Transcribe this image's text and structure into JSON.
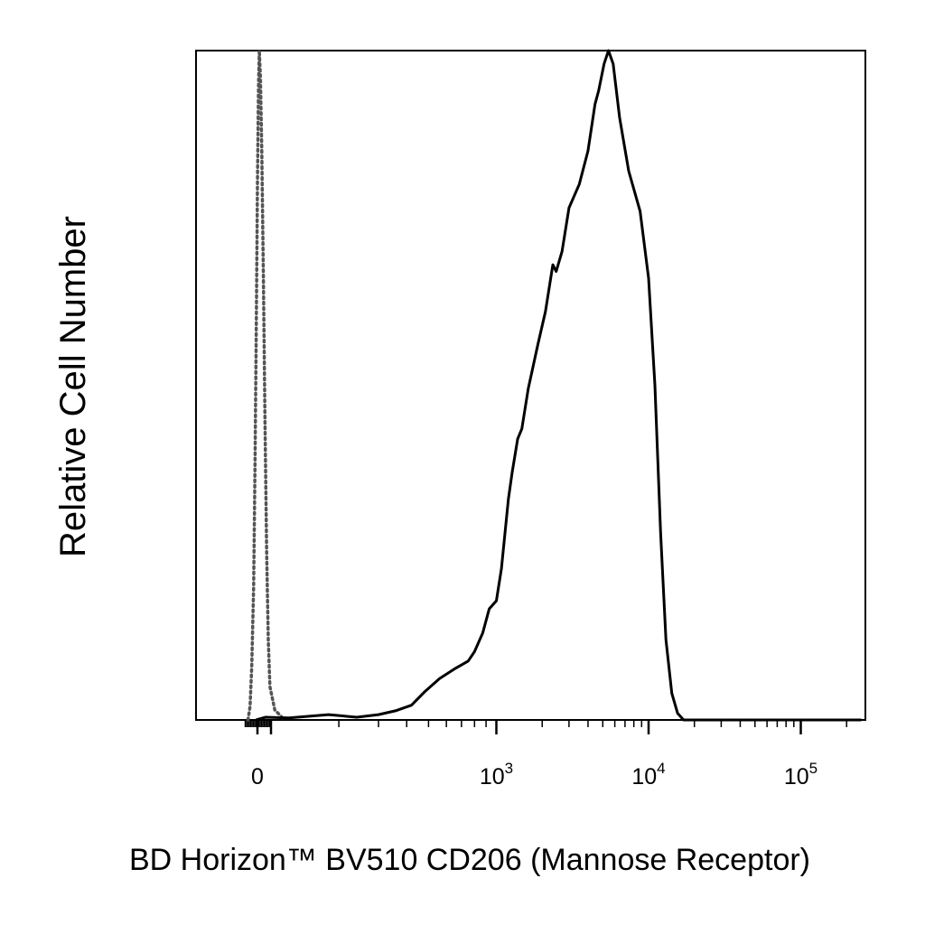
{
  "chart_data": {
    "type": "line",
    "title": "",
    "xlabel": "BD Horizon™ BV510 CD206 (Mannose Receptor)",
    "ylabel": "Relative Cell Number",
    "x_scale": "biexponential",
    "xlim": [
      -100,
      250000
    ],
    "ylim": [
      0,
      100
    ],
    "x_ticks": [
      {
        "value": 0,
        "label": "0"
      },
      {
        "value": 1000,
        "label": "10",
        "sup": "3"
      },
      {
        "value": 10000,
        "label": "10",
        "sup": "4"
      },
      {
        "value": 100000,
        "label": "10",
        "sup": "5"
      }
    ],
    "grid": false,
    "legend": "none",
    "series": [
      {
        "style": "dotted",
        "color": "#555555",
        "points": [
          [
            -70,
            0
          ],
          [
            -55,
            2
          ],
          [
            -42,
            8
          ],
          [
            -28,
            20
          ],
          [
            -18,
            38
          ],
          [
            -8,
            60
          ],
          [
            0,
            80
          ],
          [
            8,
            95
          ],
          [
            14,
            100
          ],
          [
            22,
            96
          ],
          [
            32,
            85
          ],
          [
            44,
            66
          ],
          [
            56,
            44
          ],
          [
            68,
            25
          ],
          [
            80,
            12
          ],
          [
            92,
            5
          ],
          [
            104,
            1.5
          ],
          [
            115,
            0
          ]
        ]
      },
      {
        "style": "solid",
        "color": "#000000",
        "points": [
          [
            -10,
            0
          ],
          [
            60,
            0.4
          ],
          [
            120,
            0.3
          ],
          [
            180,
            0.8
          ],
          [
            240,
            0.4
          ],
          [
            300,
            0.8
          ],
          [
            360,
            1.4
          ],
          [
            420,
            2.2
          ],
          [
            480,
            4.2
          ],
          [
            560,
            6.2
          ],
          [
            650,
            7.6
          ],
          [
            750,
            8.8
          ],
          [
            800,
            10.2
          ],
          [
            870,
            13
          ],
          [
            930,
            16.6
          ],
          [
            1000,
            17.8
          ],
          [
            1080,
            22.6
          ],
          [
            1200,
            33
          ],
          [
            1270,
            37
          ],
          [
            1380,
            42
          ],
          [
            1470,
            43.5
          ],
          [
            1620,
            49.5
          ],
          [
            1870,
            56
          ],
          [
            2100,
            61
          ],
          [
            2350,
            68
          ],
          [
            2470,
            67
          ],
          [
            2700,
            70
          ],
          [
            3000,
            76.5
          ],
          [
            3500,
            80
          ],
          [
            4000,
            85
          ],
          [
            4450,
            92
          ],
          [
            4700,
            94
          ],
          [
            5100,
            98
          ],
          [
            5450,
            100
          ],
          [
            5850,
            98
          ],
          [
            6450,
            90
          ],
          [
            7400,
            82
          ],
          [
            8800,
            76
          ],
          [
            10000,
            66
          ],
          [
            11000,
            50
          ],
          [
            12000,
            28
          ],
          [
            13000,
            12
          ],
          [
            14200,
            4
          ],
          [
            15500,
            1
          ],
          [
            17000,
            0
          ],
          [
            250000,
            0
          ]
        ]
      }
    ]
  }
}
